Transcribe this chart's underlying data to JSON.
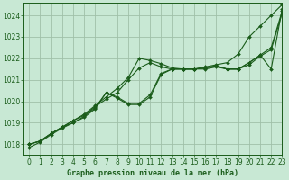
{
  "bg_color": "#c8e8d4",
  "grid_color": "#a0c0a8",
  "line_color": "#1a5c1a",
  "title": "Graphe pression niveau de la mer (hPa)",
  "xlim": [
    -0.5,
    23
  ],
  "ylim": [
    1017.5,
    1024.6
  ],
  "yticks": [
    1018,
    1019,
    1020,
    1021,
    1022,
    1023,
    1024
  ],
  "xticks": [
    0,
    1,
    2,
    3,
    4,
    5,
    6,
    7,
    8,
    9,
    10,
    11,
    12,
    13,
    14,
    15,
    16,
    17,
    18,
    19,
    20,
    21,
    22,
    23
  ],
  "series": [
    {
      "x": [
        0,
        1,
        2,
        3,
        4,
        5,
        6,
        7,
        8,
        9,
        10,
        11,
        12,
        13,
        14,
        15,
        16,
        17,
        18,
        19,
        20,
        21,
        22,
        23
      ],
      "y": [
        1018.0,
        1018.15,
        1018.5,
        1018.8,
        1019.1,
        1019.4,
        1019.8,
        1020.2,
        1020.6,
        1021.1,
        1022.0,
        1021.9,
        1021.75,
        1021.55,
        1021.5,
        1021.5,
        1021.6,
        1021.7,
        1021.8,
        1022.2,
        1023.0,
        1023.5,
        1024.0,
        1024.5
      ]
    },
    {
      "x": [
        0,
        1,
        2,
        3,
        4,
        5,
        6,
        7,
        8,
        9,
        10,
        11,
        12,
        13,
        14,
        15,
        16,
        17,
        18,
        19,
        20,
        21,
        22,
        23
      ],
      "y": [
        1018.0,
        1018.15,
        1018.5,
        1018.8,
        1019.1,
        1019.35,
        1019.75,
        1020.1,
        1020.4,
        1021.0,
        1021.55,
        1021.8,
        1021.6,
        1021.5,
        1021.5,
        1021.5,
        1021.55,
        1021.65,
        1021.5,
        1021.5,
        1021.8,
        1022.15,
        1021.5,
        1024.3
      ]
    },
    {
      "x": [
        0,
        1,
        2,
        3,
        4,
        5,
        6,
        7,
        8,
        9,
        10,
        11,
        12,
        13,
        14,
        15,
        16,
        17,
        18,
        19,
        20,
        21,
        22,
        23
      ],
      "y": [
        1018.0,
        1018.15,
        1018.5,
        1018.8,
        1019.0,
        1019.3,
        1019.7,
        1020.4,
        1020.2,
        1019.9,
        1019.9,
        1020.3,
        1021.3,
        1021.5,
        1021.5,
        1021.5,
        1021.55,
        1021.65,
        1021.5,
        1021.5,
        1021.8,
        1022.15,
        1022.5,
        1024.2
      ]
    },
    {
      "x": [
        0,
        1,
        2,
        3,
        4,
        5,
        6,
        7,
        8,
        9,
        10,
        11,
        12,
        13,
        14,
        15,
        16,
        17,
        18,
        19,
        20,
        21,
        22,
        23
      ],
      "y": [
        1017.85,
        1018.1,
        1018.45,
        1018.75,
        1019.0,
        1019.25,
        1019.65,
        1020.4,
        1020.15,
        1019.85,
        1019.85,
        1020.2,
        1021.25,
        1021.5,
        1021.5,
        1021.5,
        1021.5,
        1021.6,
        1021.5,
        1021.5,
        1021.7,
        1022.1,
        1022.4,
        1024.1
      ]
    }
  ]
}
